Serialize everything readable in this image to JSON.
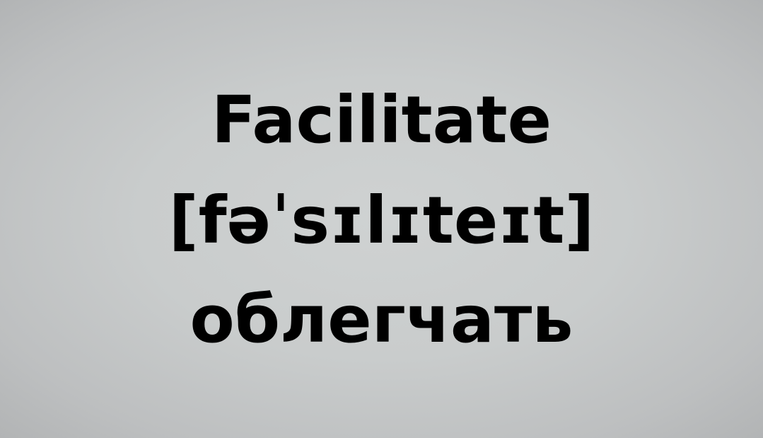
{
  "card": {
    "word": "Facilitate",
    "transcription": "[fəˈsɪlɪteɪt]",
    "translation": "облегчать"
  }
}
